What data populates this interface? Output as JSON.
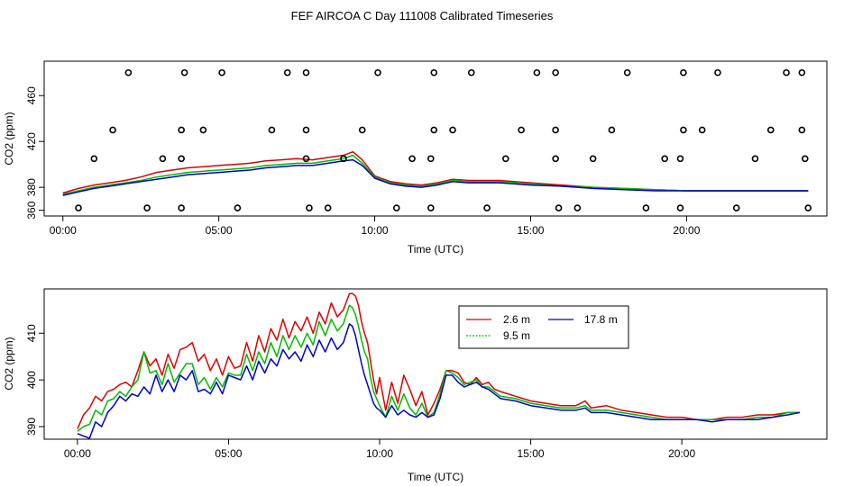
{
  "figure_title": "FEF AIRCOA C  Day 111008  Calibrated Timeseries",
  "chart_data": [
    {
      "type": "line",
      "title": "",
      "xlabel": "Time (UTC)",
      "ylabel": "CO2 (ppm)",
      "xlim": [
        -0.6,
        24.5
      ],
      "ylim": [
        355,
        490
      ],
      "xticks": [
        0,
        5,
        10,
        15,
        20
      ],
      "xticklabels": [
        "00:00",
        "05:00",
        "10:00",
        "15:00",
        "20:00"
      ],
      "yticks": [
        360,
        380,
        420,
        460
      ],
      "yticklabels": [
        "360",
        "",
        "420",
        "460"
      ],
      "extra_ytick_labels": [
        {
          "value": 380,
          "label": "380"
        }
      ],
      "series": [
        {
          "name": "2.6 m",
          "color": "#dd0000",
          "x": [
            0,
            0.5,
            1,
            1.5,
            2,
            2.5,
            3,
            3.5,
            4,
            4.5,
            5,
            5.5,
            6,
            6.5,
            7,
            7.5,
            8,
            8.5,
            9,
            9.3,
            9.6,
            10,
            10.5,
            11,
            11.5,
            12,
            12.5,
            13,
            13.5,
            14,
            15,
            16,
            17,
            18,
            19,
            20,
            21,
            22,
            23,
            23.9
          ],
          "y": [
            375,
            379,
            382,
            384,
            386,
            389,
            393,
            395,
            397,
            398,
            399,
            400,
            401,
            403,
            404,
            405,
            404,
            406,
            408,
            411,
            404,
            390,
            385,
            383,
            382,
            384,
            387,
            386,
            386,
            386,
            384,
            382,
            380,
            379,
            378,
            377,
            377,
            377,
            377,
            377
          ]
        },
        {
          "name": "9.5 m",
          "color": "#00bb00",
          "x": [
            0,
            0.5,
            1,
            1.5,
            2,
            2.5,
            3,
            3.5,
            4,
            4.5,
            5,
            5.5,
            6,
            6.5,
            7,
            7.5,
            8,
            8.5,
            9,
            9.3,
            9.6,
            10,
            10.5,
            11,
            11.5,
            12,
            12.5,
            13,
            13.5,
            14,
            15,
            16,
            17,
            18,
            19,
            20,
            21,
            22,
            23,
            23.9
          ],
          "y": [
            374,
            377,
            380,
            382,
            384,
            386,
            389,
            391,
            393,
            394,
            395,
            396,
            397,
            399,
            400,
            401,
            401,
            403,
            405,
            408,
            401,
            389,
            384,
            382,
            381,
            383,
            386,
            385,
            385,
            385,
            383,
            381,
            380,
            379,
            378,
            377,
            377,
            377,
            377,
            377
          ]
        },
        {
          "name": "17.8 m",
          "color": "#0000cc",
          "x": [
            0,
            0.5,
            1,
            1.5,
            2,
            2.5,
            3,
            3.5,
            4,
            4.5,
            5,
            5.5,
            6,
            6.5,
            7,
            7.5,
            8,
            8.5,
            9,
            9.3,
            9.6,
            10,
            10.5,
            11,
            11.5,
            12,
            12.5,
            13,
            13.5,
            14,
            15,
            16,
            17,
            18,
            19,
            20,
            21,
            22,
            23,
            23.9
          ],
          "y": [
            373,
            376,
            379,
            381,
            383,
            385,
            387,
            389,
            391,
            392,
            393,
            394,
            395,
            397,
            398,
            399,
            399,
            401,
            403,
            404,
            399,
            388,
            383,
            381,
            380,
            382,
            385,
            384,
            384,
            384,
            382,
            381,
            379,
            378,
            377,
            377,
            377,
            377,
            377,
            377
          ]
        }
      ],
      "markers": {
        "shape": "open-circle",
        "x": [
          2.1,
          3.9,
          5.1,
          7.2,
          7.8,
          10.1,
          11.9,
          13.1,
          15.2,
          15.8,
          18.1,
          19.9,
          21.0,
          23.2,
          23.7,
          1.6,
          3.8,
          4.5,
          6.7,
          7.8,
          9.6,
          11.9,
          12.5,
          14.7,
          15.8,
          17.6,
          19.9,
          20.5,
          22.7,
          23.7,
          1.0,
          3.2,
          3.8,
          7.8,
          9.0,
          11.2,
          11.8,
          14.2,
          15.8,
          17.0,
          19.3,
          19.8,
          22.2,
          23.8,
          0.5,
          2.7,
          3.8,
          5.6,
          7.9,
          8.5,
          10.7,
          11.8,
          13.6,
          15.9,
          16.5,
          18.7,
          19.8,
          21.6,
          23.9
        ],
        "y": [
          480,
          480,
          480,
          480,
          480,
          480,
          480,
          480,
          480,
          480,
          480,
          480,
          480,
          480,
          480,
          430,
          430,
          430,
          430,
          430,
          430,
          430,
          430,
          430,
          430,
          430,
          430,
          430,
          430,
          430,
          405,
          405,
          405,
          405,
          405,
          405,
          405,
          405,
          405,
          405,
          405,
          405,
          405,
          405,
          362,
          362,
          362,
          362,
          362,
          362,
          362,
          362,
          362,
          362,
          362,
          362,
          362,
          362,
          362
        ]
      }
    },
    {
      "type": "line",
      "title": "",
      "xlabel": "Time (UTC)",
      "ylabel": "CO2 (ppm)",
      "xlim": [
        -1.1,
        24.8
      ],
      "ylim": [
        387.3,
        419.5
      ],
      "xticks": [
        0,
        5,
        10,
        15,
        20
      ],
      "xticklabels": [
        "00:00",
        "05:00",
        "10:00",
        "15:00",
        "20:00"
      ],
      "yticks": [
        390,
        400,
        410
      ],
      "yticklabels": [
        "390",
        "400",
        "410"
      ],
      "legend": {
        "position": "top-center",
        "entries": [
          "2.6 m",
          "17.8 m",
          "9.5 m"
        ]
      },
      "series": [
        {
          "name": "2.6 m",
          "color": "#dd0000",
          "x": [
            0,
            0.2,
            0.4,
            0.6,
            0.8,
            1.0,
            1.2,
            1.4,
            1.6,
            1.8,
            2.0,
            2.2,
            2.4,
            2.6,
            2.8,
            3.0,
            3.2,
            3.4,
            3.6,
            3.8,
            4.0,
            4.2,
            4.4,
            4.6,
            4.8,
            5.0,
            5.2,
            5.4,
            5.6,
            5.8,
            6.0,
            6.2,
            6.4,
            6.6,
            6.8,
            7.0,
            7.2,
            7.4,
            7.6,
            7.8,
            8.0,
            8.2,
            8.4,
            8.6,
            8.8,
            9.0,
            9.1,
            9.2,
            9.3,
            9.4,
            9.5,
            9.6,
            9.7,
            9.8,
            9.9,
            10.0,
            10.2,
            10.4,
            10.6,
            10.8,
            11.0,
            11.2,
            11.4,
            11.6,
            11.8,
            12.0,
            12.2,
            12.4,
            12.6,
            12.8,
            13.0,
            13.2,
            13.4,
            13.6,
            13.8,
            14.0,
            14.5,
            15.0,
            15.5,
            16.0,
            16.5,
            16.8,
            17.0,
            17.5,
            18.0,
            18.5,
            19.0,
            19.5,
            20.0,
            20.5,
            21.0,
            21.5,
            22.0,
            22.5,
            23.0,
            23.5,
            23.9
          ],
          "y": [
            389.5,
            392.5,
            394.0,
            396.5,
            395.5,
            397.5,
            398.0,
            399.0,
            399.5,
            398.5,
            402.0,
            406.0,
            403.0,
            404.5,
            401.0,
            405.5,
            402.5,
            406.5,
            407.0,
            408.0,
            404.0,
            405.5,
            402.0,
            404.5,
            401.0,
            405.0,
            402.5,
            403.0,
            408.0,
            404.0,
            409.5,
            406.0,
            411.0,
            408.5,
            413.0,
            409.0,
            412.5,
            410.5,
            413.5,
            410.0,
            414.5,
            412.0,
            416.5,
            413.5,
            415.0,
            418.5,
            418.5,
            418.0,
            416.0,
            412.5,
            410.0,
            408.0,
            404.0,
            400.0,
            397.0,
            400.5,
            393.5,
            399.5,
            395.0,
            401.0,
            398.0,
            394.5,
            397.5,
            392.5,
            395.0,
            398.0,
            402.0,
            402.0,
            401.5,
            399.5,
            399.0,
            400.5,
            399.0,
            399.5,
            398.0,
            397.5,
            396.5,
            395.5,
            395.0,
            394.5,
            394.5,
            395.5,
            394.0,
            394.5,
            393.5,
            393.0,
            392.5,
            392.0,
            392.0,
            391.5,
            391.5,
            392.0,
            392.0,
            392.5,
            392.5,
            393.0,
            393.0
          ]
        },
        {
          "name": "9.5 m",
          "color": "#00bb00",
          "x": [
            0,
            0.2,
            0.4,
            0.6,
            0.8,
            1.0,
            1.2,
            1.4,
            1.6,
            1.8,
            2.0,
            2.2,
            2.4,
            2.6,
            2.8,
            3.0,
            3.2,
            3.4,
            3.6,
            3.8,
            4.0,
            4.2,
            4.4,
            4.6,
            4.8,
            5.0,
            5.2,
            5.4,
            5.6,
            5.8,
            6.0,
            6.2,
            6.4,
            6.6,
            6.8,
            7.0,
            7.2,
            7.4,
            7.6,
            7.8,
            8.0,
            8.2,
            8.4,
            8.6,
            8.8,
            9.0,
            9.1,
            9.2,
            9.3,
            9.4,
            9.5,
            9.6,
            9.7,
            9.8,
            9.9,
            10.0,
            10.2,
            10.4,
            10.6,
            10.8,
            11.0,
            11.2,
            11.4,
            11.6,
            11.8,
            12.0,
            12.2,
            12.4,
            12.6,
            12.8,
            13.0,
            13.2,
            13.4,
            13.6,
            13.8,
            14.0,
            14.5,
            15.0,
            15.5,
            16.0,
            16.5,
            16.8,
            17.0,
            17.5,
            18.0,
            18.5,
            19.0,
            19.5,
            20.0,
            20.5,
            21.0,
            21.5,
            22.0,
            22.5,
            23.0,
            23.5,
            23.9
          ],
          "y": [
            389.0,
            390.0,
            390.5,
            393.5,
            392.5,
            395.5,
            396.0,
            397.5,
            396.5,
            398.5,
            400.0,
            406.0,
            401.5,
            402.0,
            399.0,
            403.5,
            399.5,
            401.5,
            403.5,
            403.5,
            399.0,
            400.5,
            398.0,
            400.5,
            398.5,
            401.5,
            401.0,
            401.0,
            405.5,
            402.0,
            406.0,
            403.5,
            408.0,
            405.0,
            409.5,
            406.5,
            409.5,
            407.0,
            410.0,
            407.5,
            412.5,
            409.5,
            413.0,
            410.5,
            412.0,
            416.0,
            415.5,
            414.0,
            411.5,
            408.5,
            406.0,
            404.5,
            400.5,
            397.5,
            396.0,
            394.5,
            392.0,
            396.5,
            393.5,
            397.0,
            394.0,
            392.5,
            395.0,
            392.0,
            393.0,
            397.0,
            402.0,
            401.5,
            400.5,
            399.0,
            399.5,
            400.0,
            398.5,
            398.5,
            397.5,
            396.5,
            396.0,
            395.0,
            394.5,
            394.0,
            394.0,
            394.5,
            393.5,
            393.5,
            393.0,
            392.5,
            392.0,
            391.5,
            391.5,
            391.5,
            391.5,
            391.5,
            391.5,
            392.0,
            392.0,
            393.0,
            393.0
          ]
        },
        {
          "name": "17.8 m",
          "color": "#0000cc",
          "x": [
            0,
            0.2,
            0.4,
            0.6,
            0.8,
            1.0,
            1.2,
            1.4,
            1.6,
            1.8,
            2.0,
            2.2,
            2.4,
            2.6,
            2.8,
            3.0,
            3.2,
            3.4,
            3.6,
            3.8,
            4.0,
            4.2,
            4.4,
            4.6,
            4.8,
            5.0,
            5.2,
            5.4,
            5.6,
            5.8,
            6.0,
            6.2,
            6.4,
            6.6,
            6.8,
            7.0,
            7.2,
            7.4,
            7.6,
            7.8,
            8.0,
            8.2,
            8.4,
            8.6,
            8.8,
            9.0,
            9.1,
            9.2,
            9.3,
            9.4,
            9.5,
            9.6,
            9.7,
            9.8,
            9.9,
            10.0,
            10.2,
            10.4,
            10.6,
            10.8,
            11.0,
            11.2,
            11.4,
            11.6,
            11.8,
            12.0,
            12.2,
            12.4,
            12.6,
            12.8,
            13.0,
            13.2,
            13.4,
            13.6,
            13.8,
            14.0,
            14.5,
            15.0,
            15.5,
            16.0,
            16.5,
            16.8,
            17.0,
            17.5,
            18.0,
            18.5,
            19.0,
            19.5,
            20.0,
            20.5,
            21.0,
            21.5,
            22.0,
            22.5,
            23.0,
            23.5,
            23.9
          ],
          "y": [
            388.5,
            388.0,
            387.5,
            391.0,
            390.0,
            393.0,
            394.5,
            396.5,
            395.5,
            397.0,
            396.5,
            398.5,
            397.0,
            401.0,
            397.5,
            400.0,
            397.5,
            401.0,
            400.0,
            402.0,
            397.5,
            398.0,
            397.0,
            399.5,
            397.0,
            401.0,
            400.5,
            400.0,
            403.0,
            400.0,
            404.0,
            401.5,
            404.5,
            403.0,
            406.5,
            404.5,
            406.0,
            404.0,
            407.5,
            405.0,
            408.5,
            406.0,
            409.0,
            406.5,
            408.0,
            412.0,
            411.5,
            409.5,
            406.5,
            403.5,
            401.0,
            399.0,
            397.0,
            395.0,
            394.0,
            393.5,
            392.0,
            394.5,
            392.5,
            393.5,
            392.5,
            392.0,
            393.0,
            392.0,
            392.5,
            396.0,
            401.0,
            401.0,
            399.5,
            398.5,
            399.0,
            399.5,
            398.5,
            398.0,
            397.0,
            396.0,
            395.5,
            394.5,
            394.0,
            393.5,
            393.5,
            394.0,
            393.0,
            393.0,
            392.5,
            392.0,
            391.5,
            391.5,
            391.5,
            391.5,
            391.0,
            391.5,
            391.5,
            391.5,
            392.0,
            392.5,
            393.0
          ]
        }
      ]
    }
  ]
}
